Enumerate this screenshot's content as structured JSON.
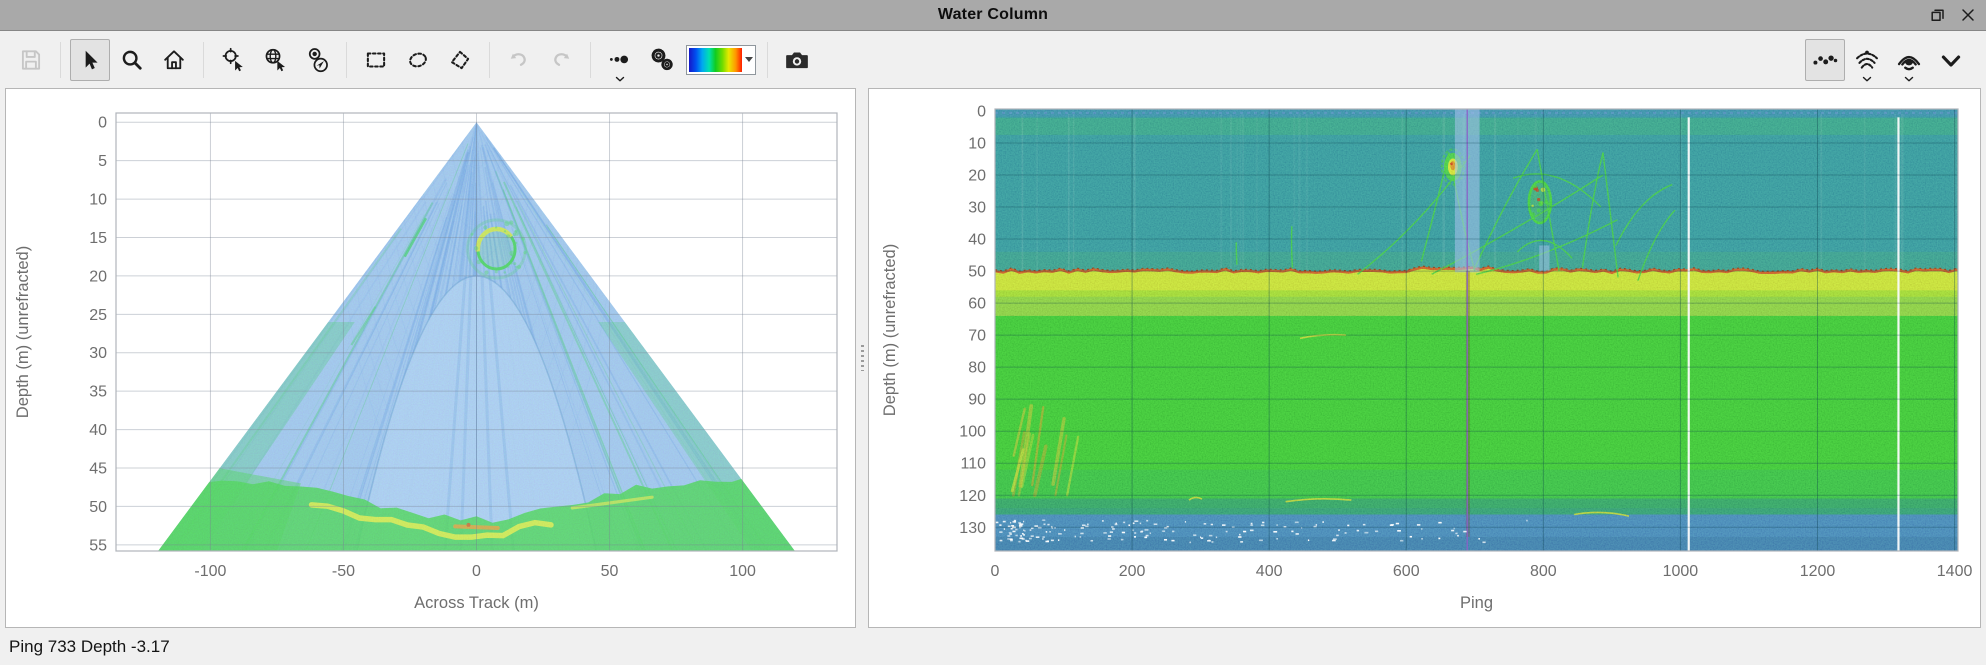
{
  "window": {
    "title": "Water Column",
    "controls": [
      "float-window-icon",
      "close-icon"
    ]
  },
  "toolbar": {
    "left_icons": [
      "save-icon",
      "cursor-select-icon",
      "zoom-icon",
      "home-icon",
      "zoom-to-point-icon",
      "geo-pick-icon",
      "beam-pick-icon",
      "rectangle-select-icon",
      "ellipse-select-icon",
      "polygon-select-icon",
      "undo-icon",
      "redo-icon",
      "point-size-icon",
      "settings-gears-icon",
      "colormap-selector",
      "snapshot-camera-icon"
    ],
    "right_icons": [
      "points-display-icon",
      "beam-display-icon",
      "fan-display-icon",
      "collapse-chevron-icon"
    ],
    "disabled": [
      "save-icon",
      "undo-icon",
      "redo-icon"
    ],
    "selected": [
      "cursor-select-icon",
      "points-display-icon"
    ],
    "colormap_stops": [
      "#1616c8",
      "#0050f0",
      "#00a8f0",
      "#00e0b0",
      "#10cc20",
      "#70dc00",
      "#e8e800",
      "#ff9800",
      "#ff1e00"
    ]
  },
  "status": {
    "text": "Ping 733  Depth -3.17"
  },
  "chart_data": [
    {
      "type": "heatmap",
      "name": "water-column-fan-view",
      "title": "",
      "xlabel": "Across Track (m)",
      "ylabel": "Depth (m) (unrefracted)",
      "xlim": [
        -135.5,
        135.5
      ],
      "ylim": [
        -1.2,
        55.8
      ],
      "xticks": [
        -100,
        -50,
        0,
        50,
        100
      ],
      "yticks": [
        0,
        5,
        10,
        15,
        20,
        25,
        30,
        35,
        40,
        45,
        50,
        55
      ],
      "grid": true,
      "fan": {
        "apex": [
          0,
          0
        ],
        "half_angle_deg": 65,
        "bottom_depth": 55.8
      },
      "colors": {
        "fill": "#a7c3ee",
        "streak_blue": "#6d9be2",
        "streak_green": "#44cc66",
        "u_fill": "#b4ccf2",
        "seafloor_green": "#43d33c",
        "seafloor_yellow": "#e7ee33",
        "seafloor_orange": "#f09a23",
        "ring": "#3bd33c",
        "ring_arc": "#e3e838",
        "center_line": "#7aa2dc"
      },
      "features": {
        "target_ring": {
          "across_m": 7.5,
          "depth_m": 16.5,
          "rx_m": 7,
          "ry_m": 2.6
        },
        "seafloor": {
          "center_depth_m": 51.8,
          "edge_depth_m": 46.6,
          "yellow_span_m": [
            -62,
            28
          ],
          "orange_span_m": [
            -8,
            8
          ],
          "right_yellow_span_m": [
            36,
            66
          ]
        },
        "mute_u_region": {
          "half_width_m": 45,
          "vertex_depth_m": 20
        }
      }
    },
    {
      "type": "heatmap",
      "name": "ping-depth-echogram",
      "title": "",
      "xlabel": "Ping",
      "ylabel": "Depth (m) (unrefracted)",
      "xlim": [
        0,
        1405
      ],
      "ylim": [
        -0.6,
        137.4
      ],
      "xticks": [
        0,
        200,
        400,
        600,
        800,
        1000,
        1200,
        1400
      ],
      "yticks": [
        0,
        10,
        20,
        30,
        40,
        50,
        60,
        70,
        80,
        90,
        100,
        110,
        120,
        130
      ],
      "grid": true,
      "colors": {
        "water": "#2d98aa",
        "surface_blue": "#3b86c6",
        "plankton_green": "#3ec468",
        "seafloor_line": "#e2511a",
        "seafloor_band": "#dcea2e",
        "bottom_green": "#38cf2d",
        "deep_teal": "#2ba06e",
        "deep_blue": "#4285ca",
        "cursor_line": "#8a63c8",
        "cursor_band": "#a9c3ee",
        "track_green": "#3fd63a"
      },
      "seafloor_depth_m": 50,
      "cursor": {
        "ping": 689,
        "band_pings": [
          671,
          707
        ]
      },
      "secondary_band": {
        "pings": [
          794,
          809
        ],
        "depths": [
          42,
          50
        ]
      },
      "data_gap_pings": [
        1012,
        1318
      ],
      "school_blobs": [
        {
          "ping": 668,
          "depth_m": 17.5,
          "rx_pings": 13,
          "ry_m": 4.4
        },
        {
          "ping": 795,
          "depth_m": 28.5,
          "rx_pings": 16,
          "ry_m": 6.5
        }
      ],
      "fish_tracks": [
        [
          [
            529,
            51
          ],
          [
            620,
            36
          ],
          [
            693,
            14
          ]
        ],
        [
          [
            622,
            47
          ],
          [
            648,
            26
          ],
          [
            662,
            13
          ]
        ],
        [
          [
            662,
            13
          ],
          [
            678,
            32
          ],
          [
            700,
            50
          ]
        ],
        [
          [
            700,
            49
          ],
          [
            745,
            28
          ],
          [
            791,
            12
          ]
        ],
        [
          [
            791,
            12
          ],
          [
            808,
            32
          ],
          [
            823,
            50
          ]
        ],
        [
          [
            637,
            51
          ],
          [
            755,
            38
          ],
          [
            887,
            20
          ]
        ],
        [
          [
            702,
            51
          ],
          [
            800,
            46
          ],
          [
            908,
            34
          ]
        ],
        [
          [
            857,
            49
          ],
          [
            872,
            26
          ],
          [
            887,
            13
          ]
        ],
        [
          [
            887,
            13
          ],
          [
            898,
            33
          ],
          [
            909,
            52
          ]
        ],
        [
          [
            906,
            42
          ],
          [
            940,
            27
          ],
          [
            988,
            23
          ]
        ],
        [
          [
            938,
            53
          ],
          [
            962,
            38
          ],
          [
            992,
            31
          ]
        ],
        [
          [
            433,
            36
          ],
          [
            432,
            43
          ],
          [
            434,
            49
          ]
        ],
        [
          [
            352,
            41
          ],
          [
            352,
            45
          ],
          [
            353,
            48
          ]
        ],
        [
          [
            756,
            21
          ],
          [
            820,
            16
          ],
          [
            884,
            30
          ]
        ],
        [
          [
            762,
            44
          ],
          [
            800,
            36
          ],
          [
            842,
            46
          ]
        ]
      ],
      "turbid_patch": {
        "pings": [
          28,
          118
        ],
        "depths": [
          92,
          120
        ]
      },
      "squiggles": [
        [
          [
            445,
            71
          ],
          [
            512,
            70
          ]
        ],
        [
          [
            424,
            122
          ],
          [
            520,
            121.5
          ]
        ],
        [
          [
            845,
            126
          ],
          [
            925,
            126.5
          ]
        ],
        [
          [
            283,
            121.5
          ],
          [
            302,
            121.2
          ]
        ]
      ]
    }
  ]
}
